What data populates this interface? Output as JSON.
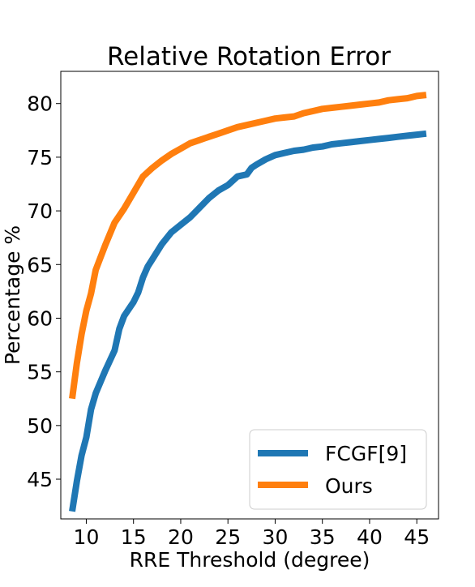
{
  "chart_data": {
    "type": "line",
    "title": "Relative Rotation Error",
    "xlabel": "RRE Threshold (degree)",
    "ylabel": "Percentage %",
    "xlim": [
      7.3,
      47.3
    ],
    "ylim": [
      41.3,
      83.0
    ],
    "xticks": [
      10,
      15,
      20,
      25,
      30,
      35,
      40,
      45
    ],
    "yticks": [
      45,
      50,
      55,
      60,
      65,
      70,
      75,
      80
    ],
    "grid": false,
    "legend_position": "bottom-right",
    "series": [
      {
        "name": "FCGF[9]",
        "color": "#1f77b4",
        "x": [
          8.5,
          9.0,
          9.5,
          10.0,
          10.5,
          11.0,
          12.0,
          13.0,
          13.5,
          14.0,
          15.0,
          15.5,
          16.0,
          16.5,
          17.0,
          18.0,
          19.0,
          20.0,
          21.0,
          22.0,
          23.0,
          24.0,
          25.0,
          26.0,
          27.0,
          27.5,
          28.0,
          29.0,
          30.0,
          31.0,
          32.0,
          33.0,
          34.0,
          35.0,
          36.0,
          37.0,
          38.0,
          39.0,
          40.0,
          41.0,
          42.0,
          43.0,
          44.0,
          45.0,
          46.0
        ],
        "values": [
          42.0,
          44.8,
          47.2,
          48.9,
          51.5,
          53.0,
          55.1,
          57.0,
          59.0,
          60.2,
          61.5,
          62.4,
          63.8,
          64.8,
          65.5,
          66.9,
          68.0,
          68.7,
          69.4,
          70.3,
          71.2,
          71.9,
          72.4,
          73.2,
          73.4,
          74.0,
          74.3,
          74.8,
          75.2,
          75.4,
          75.6,
          75.7,
          75.9,
          76.0,
          76.2,
          76.3,
          76.4,
          76.5,
          76.6,
          76.7,
          76.8,
          76.9,
          77.0,
          77.1,
          77.2
        ]
      },
      {
        "name": "Ours",
        "color": "#ff7f0e",
        "x": [
          8.5,
          9.0,
          9.5,
          10.0,
          10.5,
          11.0,
          12.0,
          13.0,
          14.0,
          15.0,
          16.0,
          17.0,
          18.0,
          19.0,
          20.0,
          21.0,
          22.0,
          23.0,
          24.0,
          25.0,
          26.0,
          27.0,
          28.0,
          29.0,
          30.0,
          31.0,
          32.0,
          33.0,
          34.0,
          35.0,
          36.0,
          37.0,
          38.0,
          39.0,
          40.0,
          41.0,
          42.0,
          43.0,
          44.0,
          45.0,
          46.0
        ],
        "values": [
          52.5,
          55.8,
          58.5,
          60.7,
          62.3,
          64.5,
          66.8,
          68.9,
          70.2,
          71.7,
          73.2,
          74.0,
          74.7,
          75.3,
          75.8,
          76.3,
          76.6,
          76.9,
          77.2,
          77.5,
          77.8,
          78.0,
          78.2,
          78.4,
          78.6,
          78.7,
          78.8,
          79.1,
          79.3,
          79.5,
          79.6,
          79.7,
          79.8,
          79.9,
          80.0,
          80.1,
          80.3,
          80.4,
          80.5,
          80.7,
          80.8
        ]
      }
    ]
  }
}
